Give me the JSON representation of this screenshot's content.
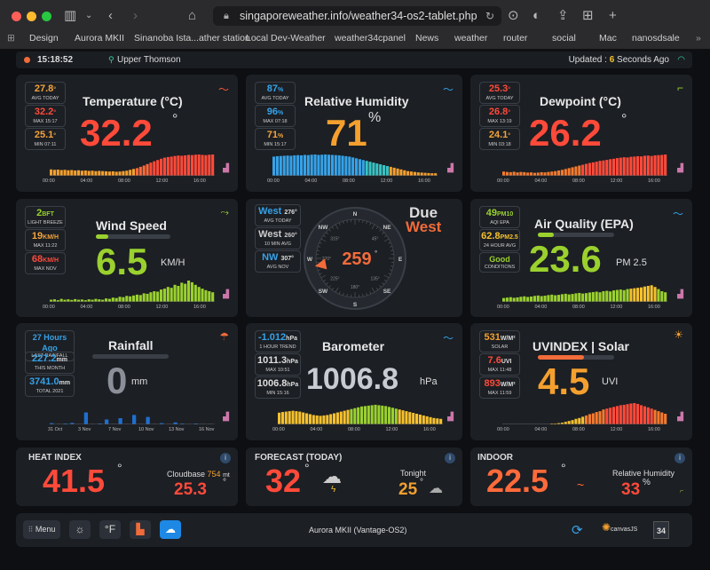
{
  "browser": {
    "url": "singaporeweather.info/weather34-os2-tablet.php",
    "bookmarks": [
      "Design",
      "Aurora MKII",
      "Sinanoba Ista...ather station",
      "Local Dev-Weather",
      "weather34cpanel",
      "News",
      "weather",
      "router",
      "social",
      "Mac",
      "nanosdsale"
    ]
  },
  "topbar": {
    "time": "15:18:52",
    "location": "Upper Thomson",
    "updated_prefix": "Updated : ",
    "updated_value": "6",
    "updated_suffix": " Seconds Ago"
  },
  "temperature": {
    "title": "Temperature (°C)",
    "value": "32.2",
    "deg": "°",
    "avg": "27.8",
    "avg_label": "AVG TODAY",
    "max": "32.2",
    "max_label": "MAX 15:17",
    "min": "25.1",
    "min_label": "MIN 07:11",
    "times": [
      "00:00",
      "04:00",
      "08:00",
      "12:00",
      "16:00"
    ]
  },
  "humidity": {
    "title": "Relative Humidity",
    "value": "71",
    "pct": "%",
    "avg": "87",
    "avg_label": "AVG TODAY",
    "max": "96",
    "max_label": "MAX 07:18",
    "min": "71",
    "min_label": "MIN 15:17",
    "times": [
      "00:00",
      "04:00",
      "08:00",
      "12:00",
      "16:00"
    ]
  },
  "dewpoint": {
    "title": "Dewpoint (°C)",
    "value": "26.2",
    "deg": "°",
    "avg": "25.3",
    "avg_label": "AVG TODAY",
    "max": "26.8",
    "max_label": "MAX 13:19",
    "min": "24.1",
    "min_label": "MIN 03:18",
    "times": [
      "00:00",
      "04:00",
      "08:00",
      "12:00",
      "16:00"
    ]
  },
  "wind": {
    "title": "Wind Speed",
    "value": "6.5",
    "unit": "KM/H",
    "bft": "2",
    "bft_unit": "BFT",
    "bft_label": "LIGHT BREEZE",
    "max": "19",
    "max_unit": "KM/H",
    "max_label": "MAX 11:22",
    "maxnov": "68",
    "maxnov_unit": "KM/H",
    "maxnov_label": "MAX NOV",
    "times": [
      "00:00",
      "04:00",
      "08:00",
      "12:00",
      "16:00"
    ]
  },
  "direction": {
    "avg_dir": "West",
    "avg_deg": "276°",
    "avg_label": "AVG TODAY",
    "tenmin_dir": "West",
    "tenmin_deg": "260°",
    "tenmin_label": "10 MIN AVG",
    "nov_dir": "NW",
    "nov_deg": "307°",
    "nov_label": "AVG NOV",
    "due": "Due",
    "due_dir": "West",
    "value": "259",
    "deg": "°",
    "compass": [
      "N",
      "NE",
      "E",
      "SE",
      "S",
      "SW",
      "W",
      "NW"
    ],
    "ticks": [
      "315°",
      "45°",
      "135°",
      "180°",
      "225°",
      "270°"
    ]
  },
  "airquality": {
    "title": "Air Quality (EPA)",
    "value": "23.6",
    "unit": "PM 2.5",
    "aqi": "49",
    "aqi_unit": "PM10",
    "aqi_label": "AQI EPA",
    "avg": "62.8",
    "avg_unit": "PM2.5",
    "avg_label": "24 HOUR AVG",
    "cond": "Good",
    "cond_label": "CONDITIONS",
    "times": [
      "00:00",
      "04:00",
      "08:00",
      "12:00",
      "16:00"
    ]
  },
  "rainfall": {
    "title": "Rainfall",
    "value": "0",
    "unit": "mm",
    "last": "27 Hours Ago",
    "last_label": "LAST RAINFALL",
    "month": "227.2",
    "month_unit": "mm",
    "month_label": "THIS MONTH",
    "total": "3741.0",
    "total_unit": "mm",
    "total_label": "TOTAL 2021",
    "dates": [
      "31 Oct",
      "3 Nov",
      "7 Nov",
      "10 Nov",
      "13 Nov",
      "16 Nov"
    ]
  },
  "barometer": {
    "title": "Barometer",
    "value": "1006.8",
    "unit": "hPa",
    "trend": "-1.012",
    "trend_unit": "hPa",
    "trend_label": "1 HOUR TREND",
    "max": "1011.3",
    "max_unit": "hPa",
    "max_label": "MAX 10:51",
    "min": "1006.8",
    "min_unit": "hPa",
    "min_label": "MIN 15:16",
    "times": [
      "00:00",
      "04:00",
      "08:00",
      "12:00",
      "16:00"
    ]
  },
  "uv": {
    "title": "UVINDEX | Solar",
    "value": "4.5",
    "unit": "UVI",
    "solar": "531",
    "solar_unit": "W/M²",
    "solar_label": "SOLAR",
    "max": "7.6",
    "max_unit": "UVI",
    "max_label": "MAX 11:48",
    "solarmax": "893",
    "solarmax_unit": "W/M²",
    "solarmax_label": "MAX 11:59",
    "times": [
      "00:00",
      "04:00",
      "08:00",
      "12:00",
      "16:00"
    ]
  },
  "heatindex": {
    "title": "HEAT INDEX",
    "value": "41.5",
    "deg": "°",
    "cloud_label": "Cloudbase",
    "cloud_value": "754",
    "cloud_unit": "mt",
    "feels": "25.3",
    "feels_deg": "°"
  },
  "forecast": {
    "title": "FORECAST (TODAY)",
    "value": "32",
    "deg": "°",
    "tonight_label": "Tonight",
    "tonight_value": "25",
    "tonight_deg": "°"
  },
  "indoor": {
    "title": "INDOOR",
    "value": "22.5",
    "deg": "°",
    "trend": "~",
    "hum_label": "Relative Humidity",
    "hum_value": "33",
    "hum_pct": "%"
  },
  "footer": {
    "menu": "Menu",
    "unit_btn": "°F",
    "station": "Aurora MKII (Vantage-OS2)",
    "canvas": "canvasJS",
    "badge": "34"
  },
  "chart_data": [
    {
      "type": "bar",
      "name": "temperature",
      "values": [
        0.3,
        0.28,
        0.29,
        0.27,
        0.28,
        0.26,
        0.27,
        0.25,
        0.26,
        0.24,
        0.25,
        0.23,
        0.24,
        0.22,
        0.23,
        0.22,
        0.21,
        0.2,
        0.21,
        0.19,
        0.2,
        0.22,
        0.24,
        0.28,
        0.32,
        0.36,
        0.42,
        0.48,
        0.55,
        0.62,
        0.68,
        0.74,
        0.8,
        0.85,
        0.88,
        0.9,
        0.93,
        0.95,
        0.94,
        0.96,
        0.98,
        0.97,
        0.99,
        1.0,
        0.98,
        0.97,
        0.99,
        1.0
      ]
    },
    {
      "type": "bar",
      "name": "humidity",
      "values": [
        0.9,
        0.92,
        0.93,
        0.94,
        0.95,
        0.94,
        0.96,
        0.97,
        0.96,
        0.98,
        0.97,
        0.99,
        1.0,
        0.98,
        0.99,
        1.0,
        0.99,
        0.98,
        0.97,
        0.96,
        0.94,
        0.92,
        0.9,
        0.86,
        0.82,
        0.78,
        0.74,
        0.7,
        0.66,
        0.62,
        0.58,
        0.54,
        0.5,
        0.46,
        0.42,
        0.38,
        0.34,
        0.3,
        0.26,
        0.22,
        0.2,
        0.18,
        0.16,
        0.15,
        0.14,
        0.13,
        0.12,
        0.12
      ]
    },
    {
      "type": "bar",
      "name": "dewpoint",
      "values": [
        0.2,
        0.18,
        0.17,
        0.19,
        0.16,
        0.18,
        0.17,
        0.15,
        0.16,
        0.14,
        0.15,
        0.17,
        0.16,
        0.18,
        0.2,
        0.22,
        0.25,
        0.28,
        0.32,
        0.36,
        0.4,
        0.44,
        0.48,
        0.52,
        0.56,
        0.6,
        0.63,
        0.66,
        0.7,
        0.72,
        0.75,
        0.78,
        0.8,
        0.83,
        0.85,
        0.87,
        0.86,
        0.89,
        0.9,
        0.92,
        0.91,
        0.94,
        0.95,
        0.93,
        0.96,
        0.97,
        0.98,
        1.0
      ]
    },
    {
      "type": "bar",
      "name": "wind",
      "values": [
        0.1,
        0.12,
        0.08,
        0.14,
        0.1,
        0.12,
        0.09,
        0.13,
        0.1,
        0.11,
        0.08,
        0.12,
        0.1,
        0.14,
        0.12,
        0.1,
        0.16,
        0.14,
        0.2,
        0.18,
        0.24,
        0.22,
        0.28,
        0.26,
        0.3,
        0.34,
        0.32,
        0.4,
        0.38,
        0.45,
        0.5,
        0.48,
        0.58,
        0.62,
        0.7,
        0.66,
        0.8,
        0.75,
        0.9,
        0.85,
        1.0,
        0.92,
        0.8,
        0.7,
        0.62,
        0.55,
        0.5,
        0.45
      ]
    },
    {
      "type": "bar",
      "name": "airquality",
      "values": [
        0.18,
        0.2,
        0.22,
        0.19,
        0.21,
        0.24,
        0.26,
        0.23,
        0.25,
        0.28,
        0.3,
        0.27,
        0.29,
        0.32,
        0.34,
        0.31,
        0.33,
        0.36,
        0.38,
        0.35,
        0.37,
        0.4,
        0.42,
        0.39,
        0.41,
        0.44,
        0.46,
        0.48,
        0.45,
        0.5,
        0.52,
        0.49,
        0.54,
        0.56,
        0.58,
        0.55,
        0.6,
        0.62,
        0.64,
        0.66,
        0.68,
        0.72,
        0.75,
        0.78,
        0.7,
        0.6,
        0.5,
        0.45
      ]
    },
    {
      "type": "bar",
      "name": "rainfall",
      "values": [
        0.05,
        0.0,
        0.02,
        0.06,
        0.0,
        0.48,
        0.0,
        0.03,
        0.2,
        0.0,
        0.25,
        0.0,
        0.38,
        0.0,
        0.3,
        0.0,
        0.05,
        0.0,
        0.08,
        0.02,
        0.0,
        0.03,
        0.0,
        0.0
      ]
    },
    {
      "type": "bar",
      "name": "barometer",
      "values": [
        0.55,
        0.58,
        0.6,
        0.62,
        0.64,
        0.62,
        0.6,
        0.56,
        0.52,
        0.48,
        0.44,
        0.42,
        0.4,
        0.42,
        0.44,
        0.48,
        0.52,
        0.56,
        0.6,
        0.64,
        0.68,
        0.72,
        0.76,
        0.8,
        0.84,
        0.86,
        0.88,
        0.9,
        0.92,
        0.9,
        0.88,
        0.86,
        0.82,
        0.78,
        0.74,
        0.7,
        0.66,
        0.62,
        0.58,
        0.54,
        0.5,
        0.46,
        0.42,
        0.38,
        0.34,
        0.3,
        0.28,
        0.26
      ]
    },
    {
      "type": "bar",
      "name": "uv",
      "values": [
        0,
        0,
        0,
        0,
        0,
        0,
        0,
        0,
        0,
        0,
        0,
        0,
        0,
        0,
        0.02,
        0.04,
        0.06,
        0.08,
        0.12,
        0.16,
        0.2,
        0.26,
        0.3,
        0.36,
        0.42,
        0.48,
        0.52,
        0.58,
        0.62,
        0.7,
        0.74,
        0.78,
        0.82,
        0.86,
        0.9,
        0.92,
        0.95,
        0.98,
        1.0,
        0.96,
        0.9,
        0.85,
        0.8,
        0.74,
        0.68,
        0.62,
        0.56,
        0.5
      ]
    }
  ]
}
